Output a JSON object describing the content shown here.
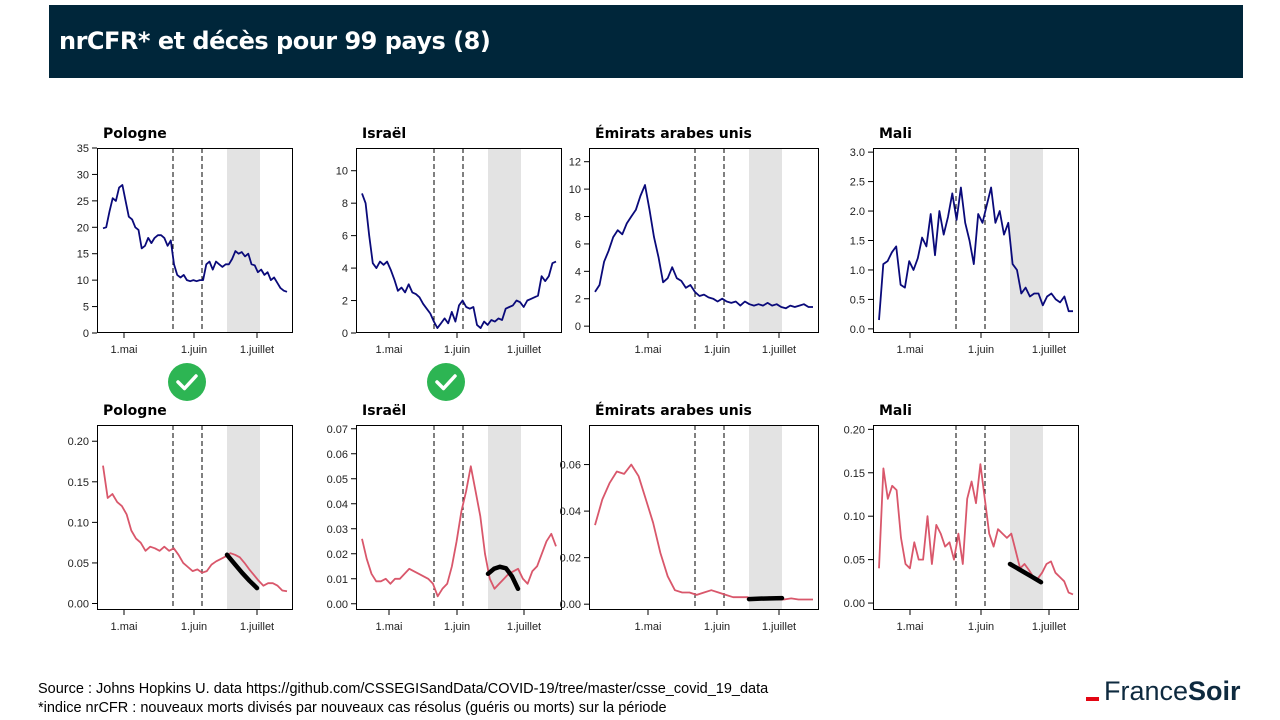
{
  "slide": {
    "title": "nrCFR* et décès pour 99 pays (8)"
  },
  "footer": {
    "source": "Source : Johns Hopkins U. data https://github.com/CSSEGISandData/COVID-19/tree/master/csse_covid_19_data",
    "note": "*indice nrCFR : nouveaux morts divisés par nouveaux cas résolus (guéris ou morts) sur la période"
  },
  "logo": {
    "part1": "France",
    "part2": "Soir"
  },
  "colors": {
    "header": "#00263a",
    "deaths_line": "#0a0a7a",
    "nrcfr_line": "#d9576b",
    "trend": "#000000",
    "shade": "#e3e3e3",
    "check": "#2db553"
  },
  "chart_data": [
    {
      "type": "line",
      "title": "Pologne",
      "row": "deaths",
      "x_ticks": [
        "1.mai",
        "1.juin",
        "1.juillet"
      ],
      "ylim": [
        0,
        35
      ],
      "yticks": [
        "0",
        "5",
        "10",
        "15",
        "20",
        "25",
        "30",
        "35"
      ],
      "values": [
        19.8,
        20,
        23,
        25.5,
        25,
        27.5,
        28,
        25,
        22,
        21.5,
        20,
        19.5,
        16,
        16.5,
        18,
        17,
        18,
        18.5,
        18.5,
        18,
        16.5,
        17.5,
        13,
        11,
        10.5,
        11,
        10,
        9.8,
        10,
        9.8,
        10,
        10,
        13,
        13.5,
        12,
        13.5,
        13,
        12.5,
        13,
        13,
        14,
        15.5,
        15,
        15.3,
        14.5,
        15,
        13,
        12.8,
        11.5,
        12,
        11,
        11.5,
        10,
        10.5,
        9.5,
        8.5,
        8,
        7.8
      ],
      "checked": true
    },
    {
      "type": "line",
      "title": "Israël",
      "row": "deaths",
      "x_ticks": [
        "1.mai",
        "1.juin",
        "1.juillet"
      ],
      "ylim": [
        0,
        11.4
      ],
      "yticks": [
        "0",
        "2",
        "4",
        "6",
        "8",
        "10"
      ],
      "values": [
        8.6,
        8,
        6,
        4.3,
        4,
        4.4,
        4.2,
        4.4,
        3.9,
        3.3,
        2.6,
        2.8,
        2.5,
        3,
        2.5,
        2.4,
        2.2,
        1.8,
        1.5,
        1.2,
        0.7,
        0.3,
        0.6,
        0.9,
        0.6,
        1.3,
        0.7,
        1.7,
        2,
        1.6,
        1.5,
        1.6,
        0.5,
        0.3,
        0.7,
        0.5,
        0.8,
        0.7,
        0.9,
        0.8,
        1.5,
        1.6,
        1.7,
        2,
        1.9,
        1.6,
        2,
        2.1,
        2.2,
        2.3,
        3.5,
        3.2,
        3.5,
        4.3,
        4.4
      ],
      "checked": true
    },
    {
      "type": "line",
      "title": "Émirats arabes unis",
      "row": "deaths",
      "x_ticks": [
        "1.mai",
        "1.juin",
        "1.juillet"
      ],
      "ylim": [
        -0.5,
        13
      ],
      "yticks": [
        "0",
        "2",
        "4",
        "6",
        "8",
        "10",
        "12"
      ],
      "values": [
        2.5,
        3,
        4.7,
        5.5,
        6.5,
        7,
        6.7,
        7.5,
        8,
        8.5,
        9.5,
        10.3,
        8.5,
        6.5,
        5,
        3.2,
        3.5,
        4.3,
        3.5,
        3.3,
        2.8,
        3,
        2.5,
        2.2,
        2.3,
        2.1,
        2,
        1.8,
        2,
        1.8,
        1.7,
        1.8,
        1.5,
        1.8,
        1.6,
        1.5,
        1.6,
        1.5,
        1.7,
        1.5,
        1.6,
        1.4,
        1.3,
        1.5,
        1.4,
        1.5,
        1.6,
        1.4,
        1.4
      ],
      "checked": false
    },
    {
      "type": "line",
      "title": "Mali",
      "row": "deaths",
      "x_ticks": [
        "1.mai",
        "1.juin",
        "1.juillet"
      ],
      "ylim": [
        -0.07,
        3.07
      ],
      "yticks": [
        "0.0",
        "0.5",
        "1.0",
        "1.5",
        "2.0",
        "2.5",
        "3.0"
      ],
      "values": [
        0.15,
        1.1,
        1.15,
        1.3,
        1.4,
        0.75,
        0.7,
        1.15,
        1,
        1.2,
        1.55,
        1.4,
        1.95,
        1.25,
        2,
        1.6,
        1.9,
        2.3,
        1.85,
        2.4,
        1.8,
        1.5,
        1.1,
        1.95,
        1.8,
        2.1,
        2.4,
        1.8,
        2,
        1.6,
        1.8,
        1.1,
        1,
        0.6,
        0.7,
        0.55,
        0.6,
        0.6,
        0.4,
        0.55,
        0.6,
        0.5,
        0.45,
        0.55,
        0.3,
        0.3
      ],
      "checked": false
    },
    {
      "type": "line",
      "title": "Pologne",
      "row": "nrcfr",
      "x_ticks": [
        "1.mai",
        "1.juin",
        "1.juillet"
      ],
      "ylim": [
        -0.008,
        0.22
      ],
      "yticks": [
        "0.00",
        "0.05",
        "0.10",
        "0.15",
        "0.20"
      ],
      "values": [
        0.17,
        0.13,
        0.135,
        0.125,
        0.12,
        0.11,
        0.09,
        0.08,
        0.075,
        0.065,
        0.07,
        0.068,
        0.065,
        0.07,
        0.065,
        0.068,
        0.06,
        0.05,
        0.045,
        0.04,
        0.042,
        0.038,
        0.04,
        0.048,
        0.052,
        0.055,
        0.058,
        0.062,
        0.06,
        0.057,
        0.05,
        0.042,
        0.035,
        0.028,
        0.022,
        0.025,
        0.025,
        0.022,
        0.016,
        0.015
      ],
      "trend": [
        0.06,
        0.049,
        0.038,
        0.028,
        0.019
      ],
      "checked": false
    },
    {
      "type": "line",
      "title": "Israël",
      "row": "nrcfr",
      "x_ticks": [
        "1.mai",
        "1.juin",
        "1.juillet"
      ],
      "ylim": [
        -0.0025,
        0.0715
      ],
      "yticks": [
        "0.00",
        "0.01",
        "0.02",
        "0.03",
        "0.04",
        "0.05",
        "0.06",
        "0.07"
      ],
      "values": [
        0.026,
        0.018,
        0.012,
        0.009,
        0.009,
        0.01,
        0.008,
        0.01,
        0.01,
        0.012,
        0.014,
        0.013,
        0.012,
        0.011,
        0.01,
        0.008,
        0.003,
        0.006,
        0.008,
        0.015,
        0.025,
        0.037,
        0.045,
        0.055,
        0.045,
        0.035,
        0.02,
        0.01,
        0.006,
        0.008,
        0.01,
        0.012,
        0.013,
        0.014,
        0.01,
        0.008,
        0.013,
        0.015,
        0.02,
        0.025,
        0.028,
        0.023
      ],
      "trend": [
        0.012,
        0.014,
        0.0148,
        0.0142,
        0.011,
        0.006
      ],
      "checked": false
    },
    {
      "type": "line",
      "title": "Émirats arabes unis",
      "row": "nrcfr",
      "x_ticks": [
        "1.mai",
        "1.juin",
        "1.juillet"
      ],
      "ylim": [
        -0.0025,
        0.077
      ],
      "yticks": [
        "0.00",
        "0.02",
        "0.04",
        "0.06"
      ],
      "values": [
        0.034,
        0.045,
        0.052,
        0.057,
        0.056,
        0.06,
        0.055,
        0.045,
        0.035,
        0.022,
        0.012,
        0.006,
        0.005,
        0.005,
        0.004,
        0.005,
        0.006,
        0.005,
        0.004,
        0.003,
        0.003,
        0.003,
        0.002,
        0.0025,
        0.003,
        0.002,
        0.002,
        0.0025,
        0.002,
        0.002,
        0.002
      ],
      "trend": [
        0.0022,
        0.0024,
        0.0025,
        0.0026
      ],
      "checked": false
    },
    {
      "type": "line",
      "title": "Mali",
      "row": "nrcfr",
      "x_ticks": [
        "1.mai",
        "1.juin",
        "1.juillet"
      ],
      "ylim": [
        -0.008,
        0.205
      ],
      "yticks": [
        "0.00",
        "0.05",
        "0.10",
        "0.15",
        "0.20"
      ],
      "values": [
        0.04,
        0.155,
        0.12,
        0.135,
        0.13,
        0.075,
        0.045,
        0.04,
        0.07,
        0.05,
        0.05,
        0.1,
        0.045,
        0.09,
        0.08,
        0.065,
        0.07,
        0.05,
        0.08,
        0.045,
        0.12,
        0.14,
        0.115,
        0.16,
        0.12,
        0.08,
        0.065,
        0.085,
        0.08,
        0.075,
        0.08,
        0.06,
        0.04,
        0.045,
        0.038,
        0.03,
        0.028,
        0.035,
        0.045,
        0.048,
        0.035,
        0.03,
        0.025,
        0.012,
        0.01
      ],
      "trend": [
        0.045,
        0.038,
        0.031,
        0.024
      ],
      "checked": false
    }
  ]
}
